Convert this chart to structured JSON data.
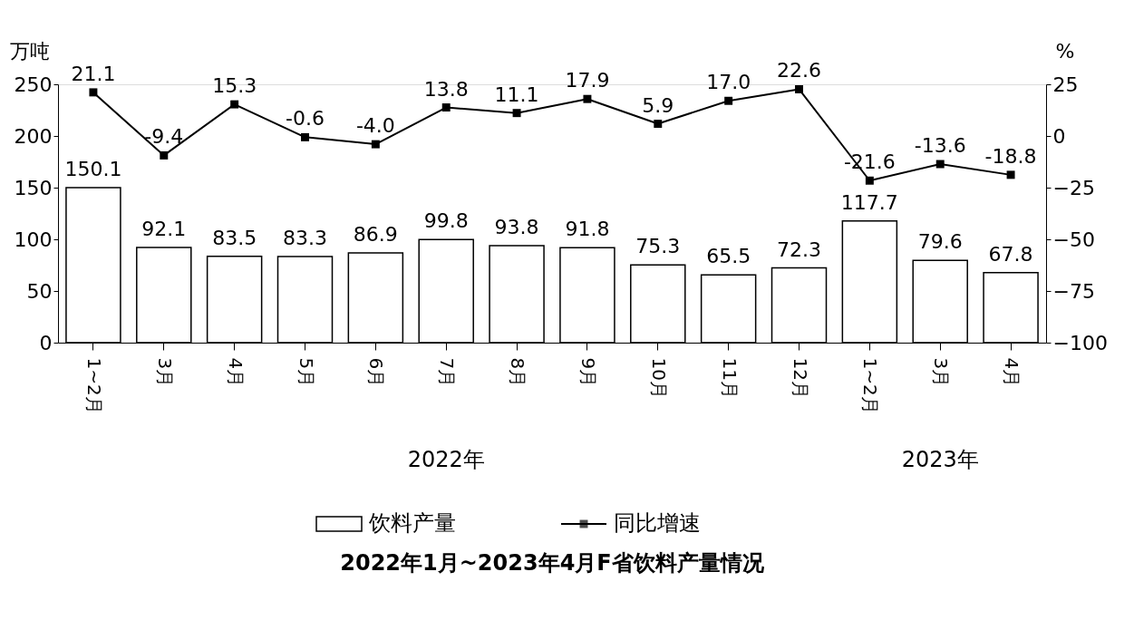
{
  "chart_data": {
    "type": "bar",
    "title": "2022年1月~2023年4月F省饮料产量情况",
    "ylabel": "万吨",
    "y2label": "%",
    "categories": [
      "1~2月",
      "3月",
      "4月",
      "5月",
      "6月",
      "7月",
      "8月",
      "9月",
      "10月",
      "11月",
      "12月",
      "1~2月",
      "3月",
      "4月"
    ],
    "series": [
      {
        "name": "饮料产量",
        "color": "#ffffff",
        "values": [
          150.1,
          92.1,
          83.5,
          83.3,
          86.9,
          99.8,
          93.8,
          91.8,
          75.3,
          65.5,
          72.3,
          117.7,
          79.6,
          67.8
        ],
        "value_labels": [
          "150.1",
          "92.1",
          "83.5",
          "83.3",
          "86.9",
          "99.8",
          "93.8",
          "91.8",
          "75.3",
          "65.5",
          "72.3",
          "117.7",
          "79.6",
          "67.8"
        ]
      },
      {
        "name": "同比增速",
        "type": "line",
        "axis": "y2",
        "color": "#000000",
        "marker": "square",
        "line_style": "solid",
        "values": [
          21.1,
          -9.4,
          15.3,
          -0.6,
          -4.0,
          13.8,
          11.1,
          17.9,
          5.9,
          17.0,
          22.6,
          -21.6,
          -13.6,
          -18.8
        ],
        "value_labels": [
          "21.1",
          "-9.4",
          "15.3",
          "-0.6",
          "-4.0",
          "13.8",
          "11.1",
          "17.9",
          "5.9",
          "17.0",
          "22.6",
          "-21.6",
          "-13.6",
          "-18.8"
        ]
      }
    ],
    "ylim": [
      0,
      250
    ],
    "yticks": [
      0,
      50,
      100,
      150,
      200,
      250
    ],
    "y2lim": [
      -100,
      25
    ],
    "y2ticks": [
      -100,
      -75,
      -50,
      -25,
      0,
      25
    ],
    "grid": false,
    "legend": "bottom",
    "annotations": [
      "2022年",
      "2023年"
    ]
  }
}
